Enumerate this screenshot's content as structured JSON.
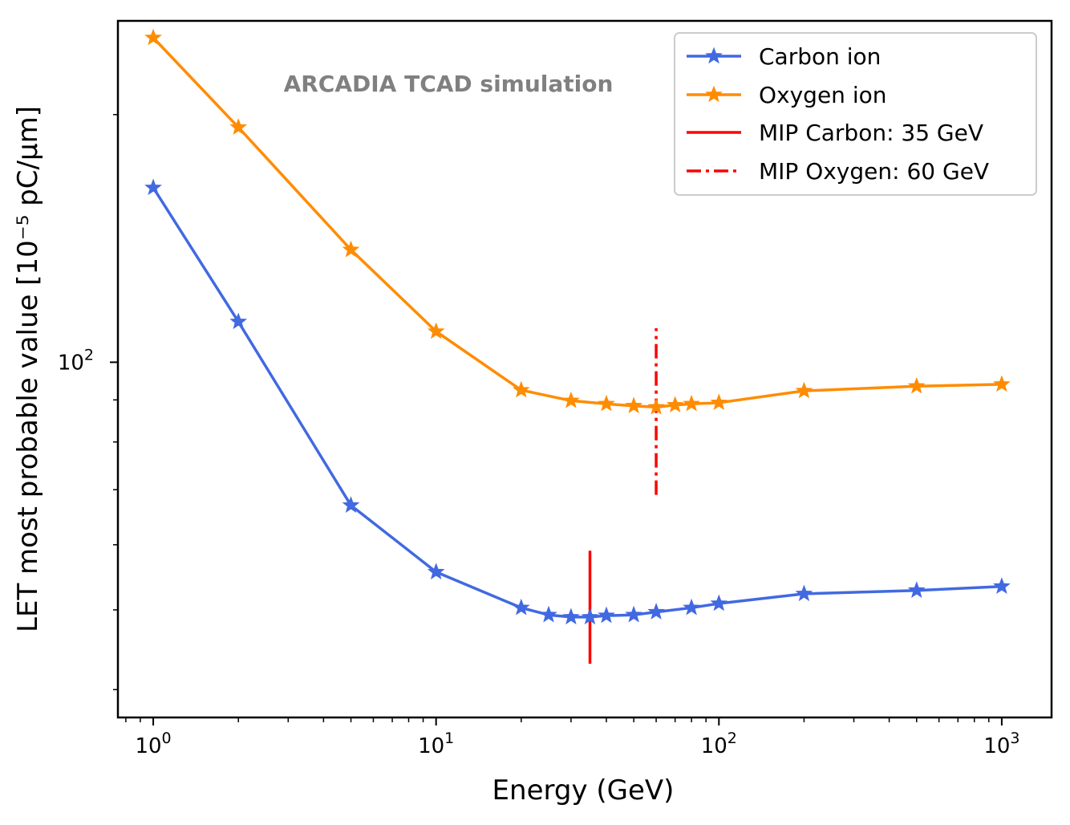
{
  "chart_data": {
    "type": "line",
    "title": "",
    "xlabel": "Energy (GeV)",
    "ylabel": "LET most probable value [10⁻⁵ pC/μm]",
    "xscale": "log",
    "yscale": "log",
    "xlim": [
      0.75,
      1500
    ],
    "ylim": [
      37,
      260
    ],
    "grid": false,
    "legend_position": "top-right",
    "annotation": "ARCADIA TCAD simulation",
    "x_ticks": [
      {
        "value": 1,
        "base": "10",
        "exp": "0"
      },
      {
        "value": 10,
        "base": "10",
        "exp": "1"
      },
      {
        "value": 100,
        "base": "10",
        "exp": "2"
      },
      {
        "value": 1000,
        "base": "10",
        "exp": "3"
      }
    ],
    "y_ticks": [
      {
        "value": 100,
        "base": "10",
        "exp": "2"
      }
    ],
    "series": [
      {
        "name": "Carbon ion",
        "color": "#4169e1",
        "marker": "star",
        "x": [
          1,
          2,
          5,
          10,
          20,
          25,
          30,
          35,
          40,
          50,
          60,
          80,
          100,
          200,
          500,
          1000
        ],
        "y": [
          163,
          112,
          67,
          55.6,
          50.3,
          49.3,
          49.0,
          49.0,
          49.2,
          49.3,
          49.7,
          50.3,
          50.9,
          52.3,
          52.8,
          53.4
        ]
      },
      {
        "name": "Oxygen ion",
        "color": "#ff8c00",
        "marker": "star",
        "x": [
          1,
          2,
          5,
          10,
          20,
          30,
          40,
          50,
          60,
          70,
          80,
          100,
          200,
          500,
          1000
        ],
        "y": [
          248,
          193,
          137,
          109,
          92.5,
          89.8,
          89.0,
          88.5,
          88.2,
          88.7,
          89.0,
          89.3,
          92.3,
          93.5,
          94.0
        ]
      }
    ],
    "vertical_lines": [
      {
        "name": "MIP Carbon: 35 GeV",
        "x": 35,
        "y_range": [
          43,
          59
        ],
        "color": "#ff0000",
        "style": "solid"
      },
      {
        "name": "MIP Oxygen: 60 GeV",
        "x": 60,
        "y_range": [
          69,
          110
        ],
        "color": "#ff0000",
        "style": "dashdot"
      }
    ]
  }
}
